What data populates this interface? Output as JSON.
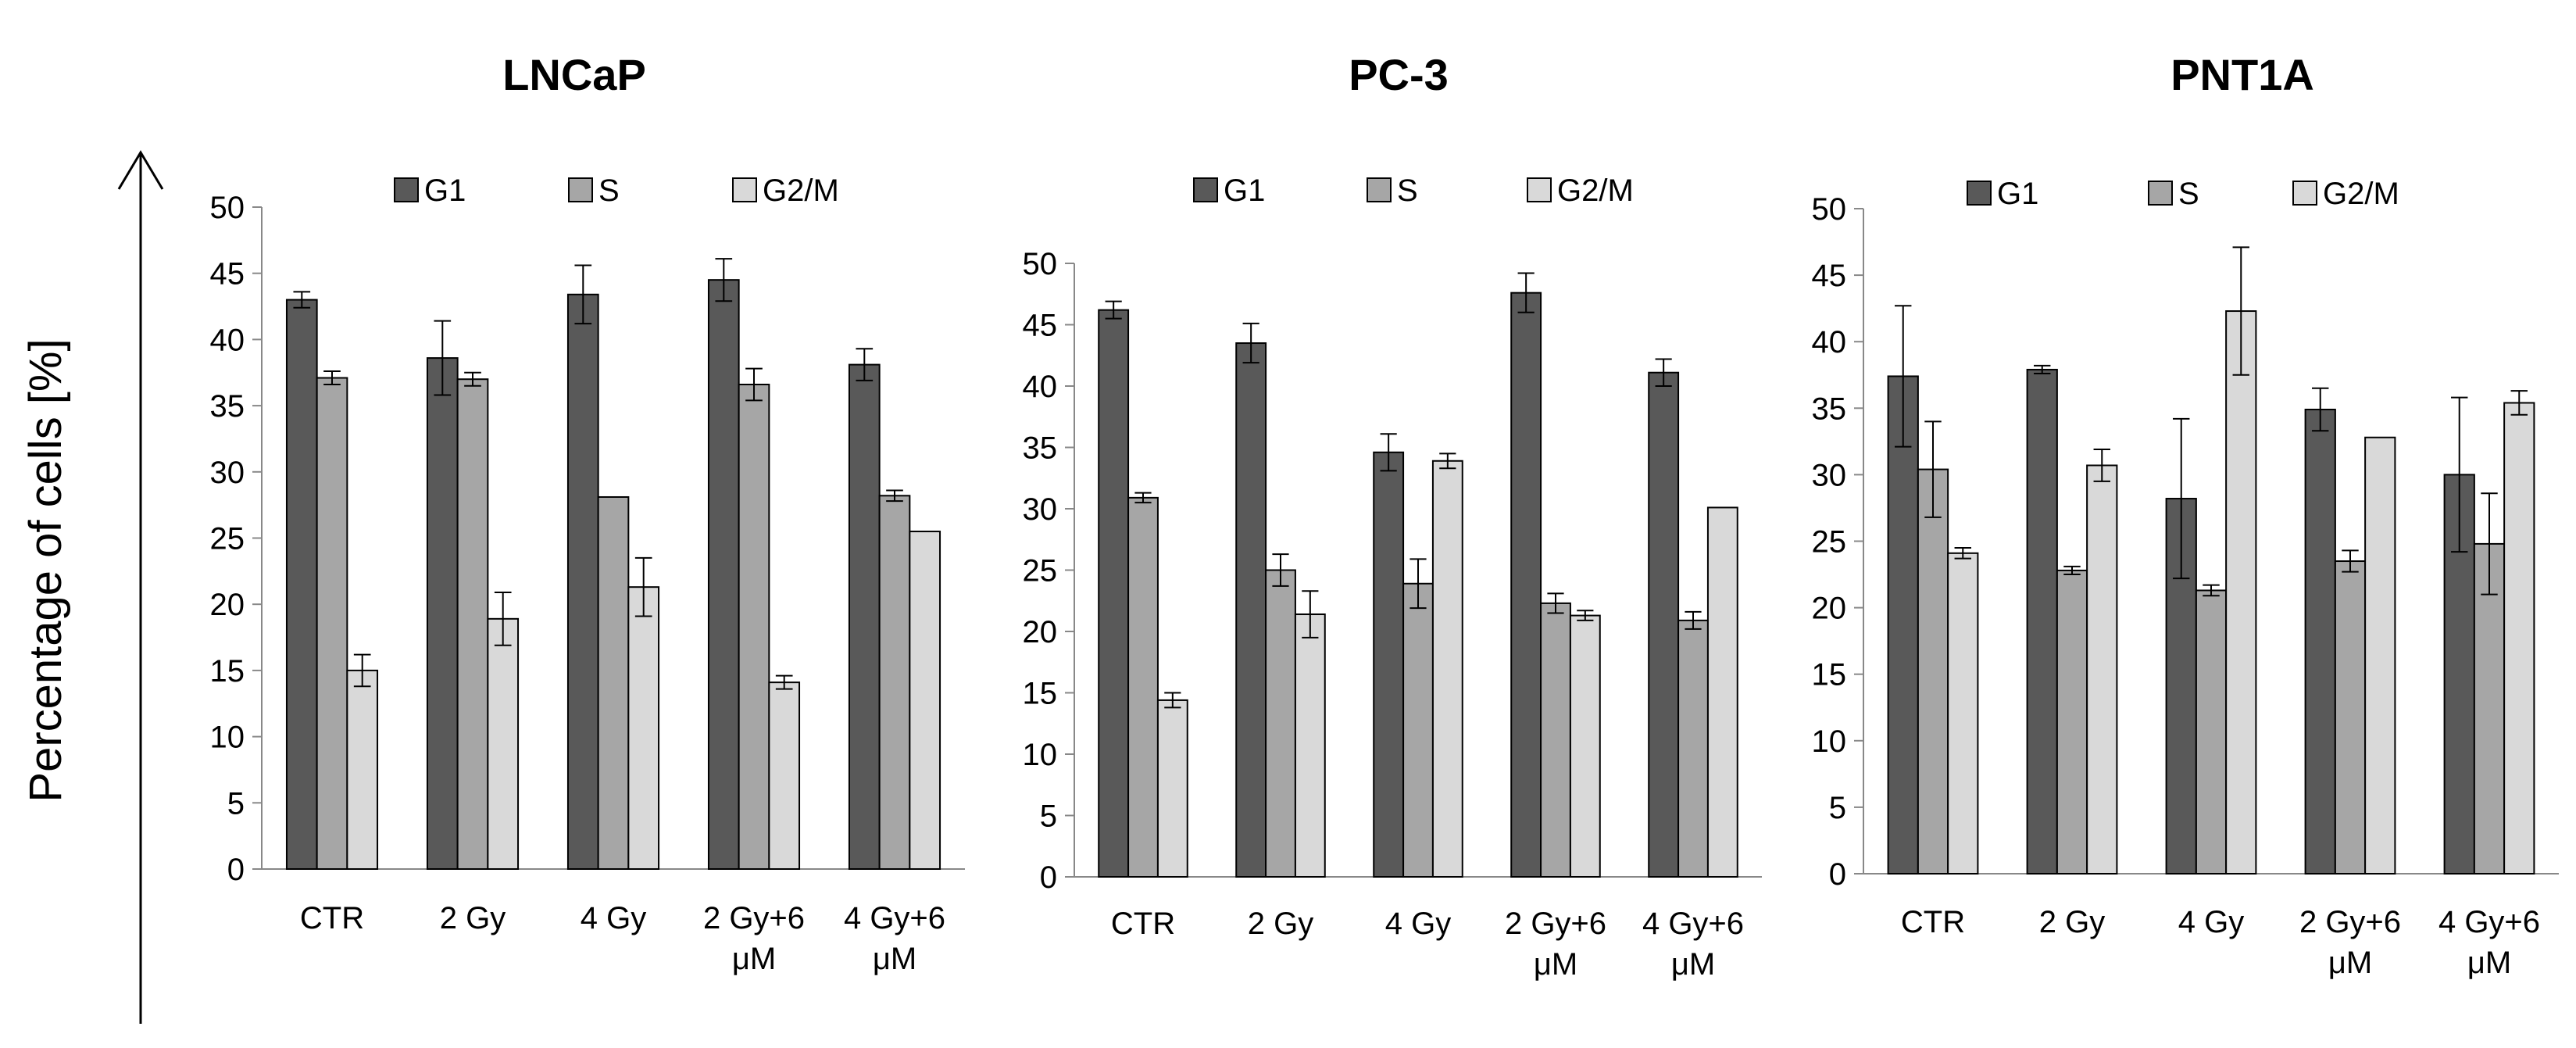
{
  "figure": {
    "ylabel": "Percentage of cells [%]"
  },
  "chart_data": [
    {
      "type": "bar",
      "title": "LNCaP",
      "categories": [
        [
          "CTR"
        ],
        [
          "2 Gy"
        ],
        [
          "4 Gy"
        ],
        [
          "2 Gy+6",
          "μM"
        ],
        [
          "4 Gy+6",
          "μM"
        ]
      ],
      "ylim": [
        0,
        50
      ],
      "yticks": [
        0,
        5,
        10,
        15,
        20,
        25,
        30,
        35,
        40,
        45,
        50
      ],
      "series": [
        {
          "name": "G1",
          "color": "#595959",
          "values": [
            43.0,
            38.6,
            43.4,
            44.5,
            38.1
          ],
          "errors": [
            0.6,
            2.8,
            2.2,
            1.6,
            1.2
          ]
        },
        {
          "name": "S",
          "color": "#a6a6a6",
          "values": [
            37.1,
            37.0,
            28.1,
            36.6,
            28.2
          ],
          "errors": [
            0.5,
            0.5,
            0.0,
            1.2,
            0.4
          ]
        },
        {
          "name": "G2/M",
          "color": "#d9d9d9",
          "values": [
            15.0,
            18.9,
            21.3,
            14.1,
            25.5
          ],
          "errors": [
            1.2,
            2.0,
            2.2,
            0.5,
            0.0
          ]
        }
      ]
    },
    {
      "type": "bar",
      "title": "PC-3",
      "categories": [
        [
          "CTR"
        ],
        [
          "2 Gy"
        ],
        [
          "4 Gy"
        ],
        [
          "2 Gy+6",
          "μM"
        ],
        [
          "4 Gy+6",
          "μM"
        ]
      ],
      "ylim": [
        0,
        50
      ],
      "yticks": [
        0,
        5,
        10,
        15,
        20,
        25,
        30,
        35,
        40,
        45,
        50
      ],
      "series": [
        {
          "name": "G1",
          "color": "#595959",
          "values": [
            46.2,
            43.5,
            34.6,
            47.6,
            41.1
          ],
          "errors": [
            0.7,
            1.6,
            1.5,
            1.6,
            1.1
          ]
        },
        {
          "name": "S",
          "color": "#a6a6a6",
          "values": [
            30.9,
            25.0,
            23.9,
            22.3,
            20.9
          ],
          "errors": [
            0.4,
            1.3,
            2.0,
            0.8,
            0.7
          ]
        },
        {
          "name": "G2/M",
          "color": "#d9d9d9",
          "values": [
            14.4,
            21.4,
            33.9,
            21.3,
            30.1
          ],
          "errors": [
            0.6,
            1.9,
            0.6,
            0.4,
            0.0
          ]
        }
      ]
    },
    {
      "type": "bar",
      "title": "PNT1A",
      "categories": [
        [
          "CTR"
        ],
        [
          "2 Gy"
        ],
        [
          "4 Gy"
        ],
        [
          "2 Gy+6",
          "μM"
        ],
        [
          "4 Gy+6",
          "μM"
        ]
      ],
      "ylim": [
        0,
        50
      ],
      "yticks": [
        0,
        5,
        10,
        15,
        20,
        25,
        30,
        35,
        40,
        45,
        50
      ],
      "series": [
        {
          "name": "G1",
          "color": "#595959",
          "values": [
            37.4,
            37.9,
            28.2,
            34.9,
            30.0
          ],
          "errors": [
            5.3,
            0.3,
            6.0,
            1.6,
            5.8
          ]
        },
        {
          "name": "S",
          "color": "#a6a6a6",
          "values": [
            30.4,
            22.8,
            21.3,
            23.5,
            24.8
          ],
          "errors": [
            3.6,
            0.3,
            0.4,
            0.8,
            3.8
          ]
        },
        {
          "name": "G2/M",
          "color": "#d9d9d9",
          "values": [
            24.1,
            30.7,
            42.3,
            32.8,
            35.4
          ],
          "errors": [
            0.4,
            1.2,
            4.8,
            0.0,
            0.9
          ]
        }
      ]
    }
  ]
}
